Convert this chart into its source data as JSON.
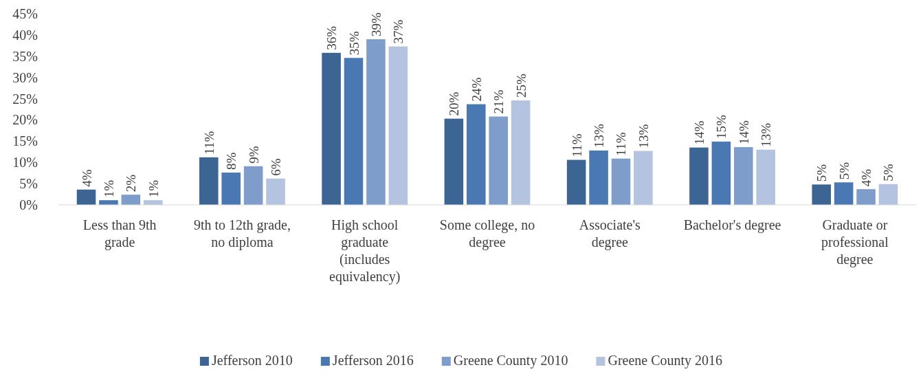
{
  "chart_data": {
    "type": "bar",
    "categories": [
      "Less than 9th grade",
      "9th to 12th grade, no diploma",
      "High school graduate (includes equivalency)",
      "Some college, no degree",
      "Associate's degree",
      "Bachelor's degree",
      "Graduate or professional degree"
    ],
    "series": [
      {
        "name": "Jefferson 2010",
        "color": "#3c6594",
        "values": [
          3.6,
          11.2,
          35.8,
          20.3,
          10.6,
          13.5,
          4.8
        ],
        "value_labels": [
          "4%",
          "11%",
          "36%",
          "20%",
          "11%",
          "14%",
          "5%"
        ]
      },
      {
        "name": "Jefferson 2016",
        "color": "#4a78b2",
        "values": [
          1.1,
          7.6,
          34.6,
          23.7,
          12.8,
          14.9,
          5.3
        ],
        "value_labels": [
          "1%",
          "8%",
          "35%",
          "24%",
          "13%",
          "15%",
          "5%"
        ]
      },
      {
        "name": "Greene County 2010",
        "color": "#7f9dcb",
        "values": [
          2.4,
          9.1,
          39.0,
          20.8,
          10.9,
          13.6,
          3.7
        ],
        "value_labels": [
          "2%",
          "9%",
          "39%",
          "21%",
          "11%",
          "14%",
          "4%"
        ]
      },
      {
        "name": "Greene County 2016",
        "color": "#b4c3df",
        "values": [
          1.1,
          6.2,
          37.3,
          24.6,
          12.7,
          13.0,
          4.9
        ],
        "value_labels": [
          "1%",
          "6%",
          "37%",
          "25%",
          "13%",
          "13%",
          "5%"
        ]
      }
    ],
    "ylim": [
      0,
      45
    ],
    "yticks": [
      {
        "value": 0,
        "label": "0%"
      },
      {
        "value": 5,
        "label": "5%"
      },
      {
        "value": 10,
        "label": "10%"
      },
      {
        "value": 15,
        "label": "15%"
      },
      {
        "value": 20,
        "label": "20%"
      },
      {
        "value": 25,
        "label": "25%"
      },
      {
        "value": 30,
        "label": "30%"
      },
      {
        "value": 35,
        "label": "35%"
      },
      {
        "value": 40,
        "label": "40%"
      },
      {
        "value": 45,
        "label": "45%"
      }
    ],
    "grid": false,
    "legend": "bottom"
  }
}
